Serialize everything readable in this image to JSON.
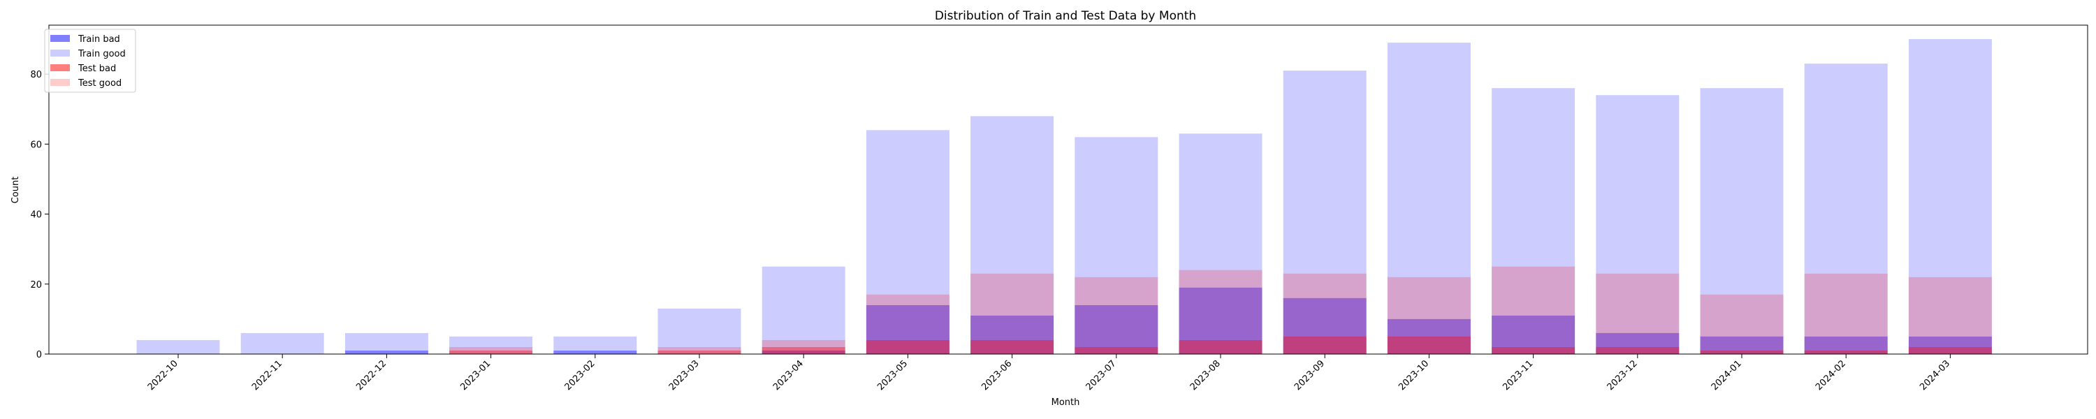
{
  "chart_data": {
    "type": "bar",
    "title": "Distribution of Train and Test Data by Month",
    "xlabel": "Month",
    "ylabel": "Count",
    "ylim": [
      0,
      94
    ],
    "yticks": [
      0,
      20,
      40,
      60,
      80
    ],
    "grid": false,
    "legend_position": "top-left",
    "categories": [
      "2022-10",
      "2022-11",
      "2022-12",
      "2023-01",
      "2023-02",
      "2023-03",
      "2023-04",
      "2023-05",
      "2023-06",
      "2023-07",
      "2023-08",
      "2023-09",
      "2023-10",
      "2023-11",
      "2023-12",
      "2024-01",
      "2024-02",
      "2024-03"
    ],
    "series": [
      {
        "name": "Train bad",
        "color": "#0000ff",
        "opacity": 0.5,
        "values": [
          0,
          0,
          1,
          0,
          1,
          0,
          1,
          14,
          11,
          14,
          19,
          16,
          10,
          11,
          6,
          5,
          5,
          5
        ]
      },
      {
        "name": "Train good",
        "color": "#0000ff",
        "opacity": 0.2,
        "values": [
          4,
          6,
          5,
          5,
          4,
          13,
          24,
          50,
          57,
          48,
          44,
          65,
          79,
          65,
          68,
          71,
          78,
          85
        ]
      },
      {
        "name": "Test bad",
        "color": "#ff0000",
        "opacity": 0.5,
        "values": [
          0,
          0,
          0,
          1,
          0,
          1,
          2,
          4,
          4,
          2,
          4,
          5,
          5,
          2,
          2,
          1,
          1,
          2
        ]
      },
      {
        "name": "Test good",
        "color": "#ff0000",
        "opacity": 0.2,
        "values": [
          0,
          0,
          0,
          1,
          0,
          1,
          2,
          13,
          19,
          20,
          20,
          18,
          17,
          23,
          21,
          16,
          22,
          20
        ]
      }
    ]
  }
}
